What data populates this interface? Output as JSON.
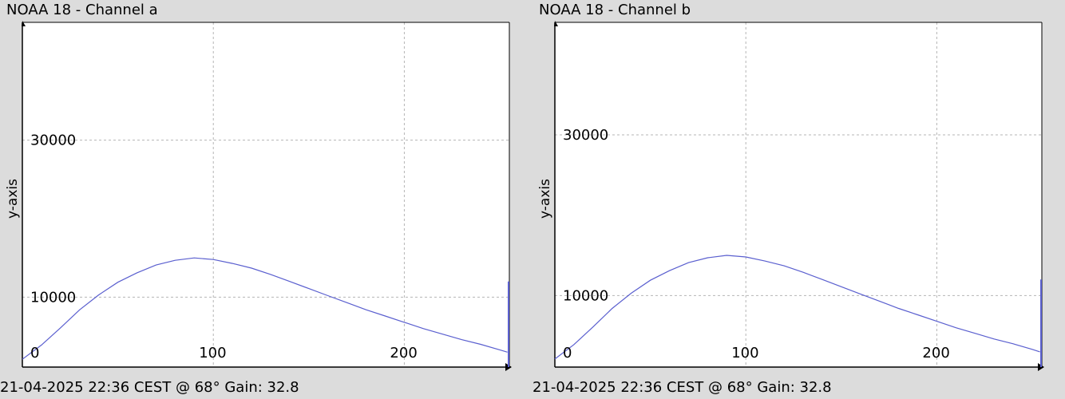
{
  "chart_data": [
    {
      "type": "line",
      "title": "NOAA 18 - Channel a",
      "footer": "21-04-2025 22:36 CEST @ 68° Gain: 32.8",
      "ylabel": "y-axis",
      "xlabel": "",
      "x_ticks": [
        {
          "value": 0,
          "label": "0"
        },
        {
          "value": 100,
          "label": "100"
        },
        {
          "value": 200,
          "label": "200"
        }
      ],
      "y_ticks": [
        {
          "value": 10000,
          "label": "10000"
        },
        {
          "value": 30000,
          "label": "30000"
        }
      ],
      "xlim": [
        0,
        255
      ],
      "ylim": [
        1100,
        45000
      ],
      "grid": true,
      "line_color": "#5a5fcf",
      "series": [
        {
          "x": [
            0,
            10,
            20,
            30,
            40,
            50,
            60,
            70,
            80,
            90,
            100,
            110,
            120,
            130,
            140,
            150,
            160,
            170,
            180,
            190,
            200,
            210,
            220,
            230,
            240,
            250,
            254
          ],
          "y": [
            2100,
            3900,
            6100,
            8400,
            10300,
            11900,
            13100,
            14100,
            14700,
            15000,
            14800,
            14300,
            13700,
            12900,
            12000,
            11100,
            10200,
            9300,
            8400,
            7600,
            6800,
            6000,
            5300,
            4600,
            4000,
            3300,
            3000
          ]
        }
      ],
      "end_spike": {
        "x": 255,
        "y_top": 12000
      }
    },
    {
      "type": "line",
      "title": "NOAA 18 - Channel b",
      "footer": "21-04-2025 22:36 CEST @ 68° Gain: 32.8",
      "ylabel": "y-axis",
      "xlabel": "",
      "x_ticks": [
        {
          "value": 0,
          "label": "0"
        },
        {
          "value": 100,
          "label": "100"
        },
        {
          "value": 200,
          "label": "200"
        }
      ],
      "y_ticks": [
        {
          "value": 10000,
          "label": "10000"
        },
        {
          "value": 30000,
          "label": "30000"
        }
      ],
      "xlim": [
        0,
        255
      ],
      "ylim": [
        1100,
        44000
      ],
      "grid": true,
      "line_color": "#5a5fcf",
      "series": [
        {
          "x": [
            0,
            10,
            20,
            30,
            40,
            50,
            60,
            70,
            80,
            90,
            100,
            110,
            120,
            130,
            140,
            150,
            160,
            170,
            180,
            190,
            200,
            210,
            220,
            230,
            240,
            250,
            254
          ],
          "y": [
            2100,
            3900,
            6100,
            8400,
            10300,
            11900,
            13100,
            14100,
            14700,
            15000,
            14800,
            14300,
            13700,
            12900,
            12000,
            11100,
            10200,
            9300,
            8400,
            7600,
            6800,
            6000,
            5300,
            4600,
            4000,
            3300,
            3000
          ]
        }
      ],
      "end_spike": {
        "x": 255,
        "y_top": 12000
      }
    }
  ]
}
